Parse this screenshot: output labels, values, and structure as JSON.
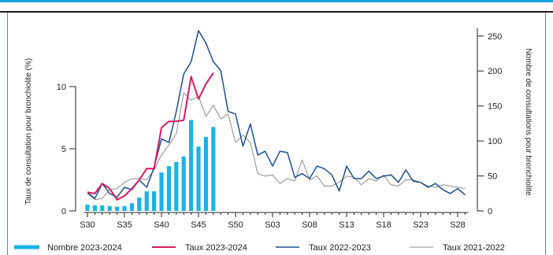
{
  "chart_data": {
    "type": "bar+line",
    "x_ticks": [
      "S30",
      "S35",
      "S40",
      "S45",
      "S50",
      "S03",
      "S08",
      "S13",
      "S18",
      "S23",
      "S28"
    ],
    "weeks": [
      "S30",
      "S31",
      "S32",
      "S33",
      "S34",
      "S35",
      "S36",
      "S37",
      "S38",
      "S39",
      "S40",
      "S41",
      "S42",
      "S43",
      "S44",
      "S45",
      "S46",
      "S47",
      "S48",
      "S49",
      "S50",
      "S51",
      "S52",
      "S01",
      "S02",
      "S03",
      "S04",
      "S05",
      "S06",
      "S07",
      "S08",
      "S09",
      "S10",
      "S11",
      "S12",
      "S13",
      "S14",
      "S15",
      "S16",
      "S17",
      "S18",
      "S19",
      "S20",
      "S21",
      "S22",
      "S23",
      "S24",
      "S25",
      "S26",
      "S27",
      "S28",
      "S29"
    ],
    "ylabel_left": "Taux de consultation pour bronchiolite (%)",
    "ylabel_right": "Nombre de consultations pour bronchiolite",
    "y_left": {
      "min": 0,
      "max": 15,
      "ticks": [
        0,
        5,
        10
      ]
    },
    "y_right": {
      "min": 0,
      "max": 260,
      "ticks": [
        0,
        50,
        100,
        150,
        200,
        250
      ]
    },
    "series": [
      {
        "name": "Nombre 2023-2024",
        "kind": "bar",
        "axis": "right",
        "color": "#1ab3e6",
        "values": [
          9,
          8,
          8,
          7,
          6,
          7,
          11,
          19,
          28,
          28,
          55,
          64,
          70,
          78,
          130,
          92,
          106,
          120
        ]
      },
      {
        "name": "Taux 2023-2024",
        "kind": "line",
        "axis": "left",
        "color": "#d81b60",
        "values": [
          1.5,
          1.4,
          2.2,
          1.8,
          0.9,
          1.2,
          1.8,
          2.5,
          3.4,
          3.4,
          6.7,
          7.2,
          7.2,
          7.3,
          10.8,
          9.0,
          10.2,
          11.1
        ]
      },
      {
        "name": "Taux 2022-2023",
        "kind": "line",
        "axis": "left",
        "color": "#1f4e8c",
        "values": [
          1.5,
          1.0,
          2.2,
          1.4,
          1.1,
          1.9,
          1.7,
          2.5,
          1.9,
          3.5,
          5.8,
          5.5,
          8.0,
          11.0,
          12.0,
          14.5,
          13.5,
          12.0,
          11.3,
          8.0,
          7.8,
          5.2,
          7.0,
          4.5,
          4.8,
          3.6,
          4.8,
          4.7,
          2.7,
          3.0,
          2.6,
          3.6,
          3.4,
          2.9,
          1.6,
          3.6,
          2.6,
          2.6,
          3.2,
          2.6,
          2.8,
          2.9,
          2.3,
          3.3,
          2.4,
          2.3,
          1.9,
          2.2,
          1.7,
          1.4,
          1.8,
          1.3
        ]
      },
      {
        "name": "Taux 2021-2022",
        "kind": "line",
        "axis": "left",
        "color": "#8c8c8c",
        "values": [
          1.4,
          0.9,
          1.0,
          1.7,
          1.8,
          2.3,
          2.6,
          2.6,
          2.5,
          3.3,
          4.5,
          5.3,
          6.2,
          9.5,
          8.9,
          9.2,
          7.6,
          8.5,
          7.4,
          7.8,
          5.5,
          6.1,
          5.5,
          3.0,
          2.8,
          2.9,
          2.2,
          2.6,
          2.4,
          4.1,
          2.5,
          2.8,
          2.0,
          2.0,
          2.3,
          2.8,
          2.7,
          2.1,
          2.6,
          2.4,
          2.9,
          2.1,
          2.0,
          2.5,
          2.5,
          2.3,
          2.0,
          1.9,
          2.1,
          2.0,
          1.9,
          1.8
        ]
      }
    ],
    "grid": false,
    "legend_position": "bottom"
  }
}
